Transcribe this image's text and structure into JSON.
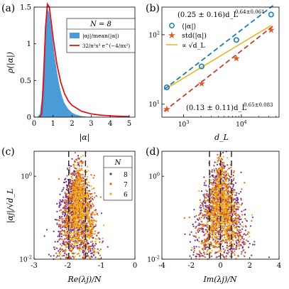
{
  "panels": {
    "a": {
      "label": "(a)"
    },
    "b": {
      "label": "(b)"
    },
    "c": {
      "label": "(c)"
    },
    "d": {
      "label": "(d)"
    }
  },
  "chart_data": [
    {
      "panel": "a",
      "type": "area",
      "legend_title": "N = 8",
      "legend_placement": "top-right",
      "xlabel": "|α|",
      "ylabel": "ρ(|α|)",
      "xlim": [
        0,
        5.3
      ],
      "ylim": [
        0,
        1.5
      ],
      "xticks": [
        0,
        1,
        2,
        3,
        4,
        5
      ],
      "yticks": [
        0,
        0.5,
        1,
        1.5
      ],
      "series": [
        {
          "name": "|αj|/mean(|α|)",
          "type": "histogram",
          "color": "#4a9bd6",
          "x": [
            0.1,
            0.2,
            0.3,
            0.4,
            0.5,
            0.6,
            0.7,
            0.8,
            0.9,
            1.0,
            1.1,
            1.2,
            1.3,
            1.4,
            1.5,
            1.6,
            1.8,
            2.0,
            2.2,
            2.5,
            2.8,
            3.2,
            3.6,
            4.0
          ],
          "y": [
            0.0,
            0.01,
            0.04,
            0.25,
            0.8,
            1.3,
            1.48,
            1.42,
            1.22,
            1.0,
            0.8,
            0.62,
            0.47,
            0.35,
            0.26,
            0.19,
            0.11,
            0.06,
            0.035,
            0.015,
            0.006,
            0.002,
            0.001,
            0.0
          ]
        },
        {
          "name": "32/π²x³ e^(−4/πx²)",
          "type": "line",
          "color": "#e0131b",
          "x": [
            0.3,
            0.4,
            0.5,
            0.6,
            0.7,
            0.8,
            0.9,
            1.0,
            1.2,
            1.4,
            1.6,
            1.8,
            2.0,
            2.5,
            3.0,
            3.5,
            4.0,
            4.5,
            5.0
          ],
          "y": [
            0.0,
            0.05,
            0.49,
            1.21,
            1.54,
            1.5,
            1.3,
            1.08,
            0.72,
            0.48,
            0.32,
            0.22,
            0.16,
            0.08,
            0.045,
            0.028,
            0.018,
            0.012,
            0.008
          ]
        }
      ]
    },
    {
      "panel": "b",
      "type": "scatter",
      "xlabel": "d_L",
      "xscale": "log",
      "yscale": "log",
      "xlim": [
        420,
        45000
      ],
      "ylim": [
        6.5,
        250
      ],
      "xticks": [
        1000,
        10000
      ],
      "xtick_labels": [
        "10^3",
        "10^4"
      ],
      "yticks": [
        10,
        100
      ],
      "ytick_labels": [
        "10^1",
        "10^2"
      ],
      "legend_placement": "top-left",
      "series": [
        {
          "name": "⟨|α|⟩",
          "marker": "circle",
          "color": "#1a7abf",
          "x": [
            512,
            2048,
            8192,
            32768
          ],
          "y": [
            17.5,
            35,
            84,
            195
          ]
        },
        {
          "name": "std(|α|)",
          "marker": "star",
          "color": "#e05a2b",
          "x": [
            512,
            2048,
            8192,
            32768
          ],
          "y": [
            8.5,
            20,
            46,
            118
          ]
        },
        {
          "name": "∝ √d_L",
          "type": "line",
          "color": "#e8b624",
          "x": [
            512,
            32768
          ],
          "y": [
            17,
            136
          ]
        }
      ],
      "fits": [
        {
          "text_main": "(0.25 ± 0.16)d_L",
          "text_exp": "0.64±0.061",
          "color": "#1a7abf",
          "coef": 0.25,
          "exp": 0.64
        },
        {
          "text_main": "(0.13 ± 0.11)d_L",
          "text_exp": "0.65±0.083",
          "color": "#c0432a",
          "coef": 0.13,
          "exp": 0.65
        }
      ]
    },
    {
      "panel": "c",
      "type": "scatter",
      "xlabel": "Re(λj)/N",
      "ylabel": "|αj|/√d_L",
      "xlim": [
        -3,
        0
      ],
      "xticks": [
        -3,
        -2,
        -1,
        0
      ],
      "yscale": "log",
      "ylim": [
        0.01,
        4
      ],
      "yticks": [
        0.01,
        1
      ],
      "ytick_labels": [
        "10^-2",
        "10^0"
      ],
      "legend_title": "N",
      "legend_placement": "top-right",
      "series": [
        {
          "name": "8",
          "color": "#6b2e9e",
          "center": -1.75,
          "spread": 0.55
        },
        {
          "name": "7",
          "color": "#e8650f",
          "center": -1.7,
          "spread": 0.5
        },
        {
          "name": "6",
          "color": "#f0b019",
          "center": -1.65,
          "spread": 0.45
        }
      ],
      "dashed_lines_x": [
        -1.97,
        -1.47
      ]
    },
    {
      "panel": "d",
      "type": "scatter",
      "xlabel": "Im(λj)/N",
      "xlim": [
        -4,
        4
      ],
      "xticks": [
        -4,
        -2,
        0,
        2,
        4
      ],
      "yscale": "log",
      "ylim": [
        0.01,
        4
      ],
      "yticks": [
        0.01,
        1
      ],
      "ytick_labels": [
        "10^-2",
        "10^0"
      ],
      "series": [
        {
          "name": "8",
          "color": "#6b2e9e",
          "center": 0,
          "spread": 1.6
        },
        {
          "name": "7",
          "color": "#e8650f",
          "center": 0,
          "spread": 1.4
        },
        {
          "name": "6",
          "color": "#f0b019",
          "center": 0,
          "spread": 1.2
        }
      ],
      "dashed_lines_x": [
        -0.75,
        0,
        0.75
      ]
    }
  ]
}
